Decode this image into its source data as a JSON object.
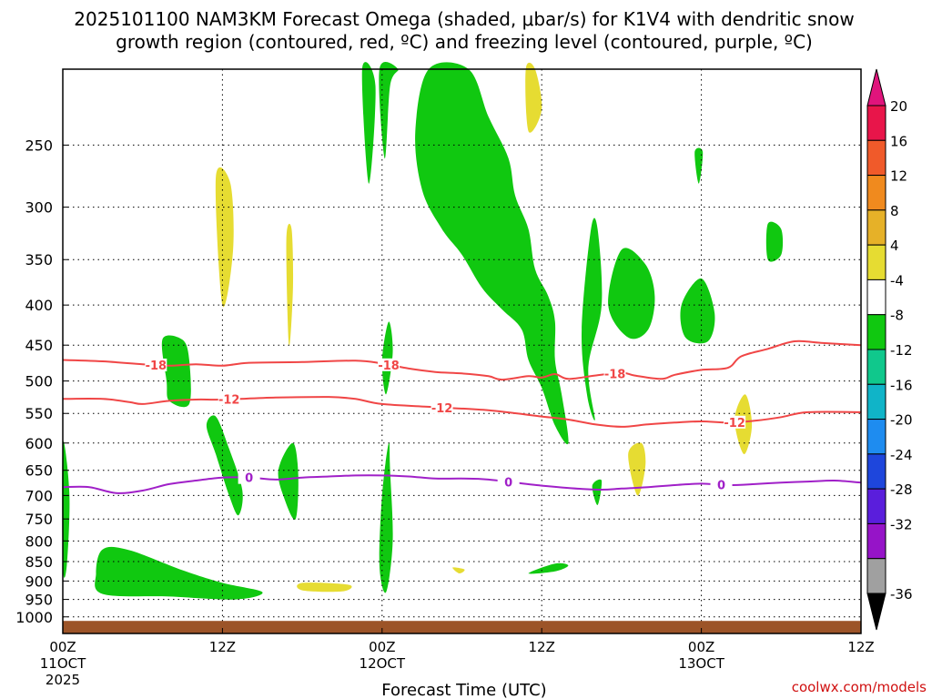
{
  "chart_data": {
    "type": "contour",
    "title_line1": "2025101100 NAM3KM Forecast Omega (shaded, μbar/s) for K1V4 with dendritic snow",
    "title_line2": "growth region (contoured, red, ºC) and freezing level (contoured, purple, ºC)",
    "xlabel": "Forecast Time (UTC)",
    "credit": "coolwx.com/models",
    "x_range_hours": [
      0,
      60
    ],
    "x_ticks": [
      {
        "h": 0,
        "label": "00Z",
        "sub": "11OCT",
        "sub2": "2025"
      },
      {
        "h": 12,
        "label": "12Z",
        "sub": "",
        "sub2": ""
      },
      {
        "h": 24,
        "label": "00Z",
        "sub": "12OCT",
        "sub2": ""
      },
      {
        "h": 36,
        "label": "12Z",
        "sub": "",
        "sub2": ""
      },
      {
        "h": 48,
        "label": "00Z",
        "sub": "13OCT",
        "sub2": ""
      },
      {
        "h": 60,
        "label": "12Z",
        "sub": "",
        "sub2": ""
      }
    ],
    "y_axis": {
      "scale": "log-pressure",
      "top_hpa": 200,
      "bottom_hpa": 1050,
      "inverted": true
    },
    "y_ticks": [
      "250",
      "300",
      "350",
      "400",
      "450",
      "500",
      "550",
      "600",
      "650",
      "700",
      "750",
      "800",
      "850",
      "900",
      "950",
      "1000"
    ],
    "y_tick_values": [
      250,
      300,
      350,
      400,
      450,
      500,
      550,
      600,
      650,
      700,
      750,
      800,
      850,
      900,
      950,
      1000
    ],
    "colorbar": {
      "labels": [
        "20",
        "16",
        "12",
        "8",
        "4",
        "-4",
        "-8",
        "-12",
        "-16",
        "-20",
        "-24",
        "-28",
        "-32",
        "-36"
      ],
      "colors": [
        "#e8154a",
        "#f05a2a",
        "#f08a1e",
        "#e6b128",
        "#e6dc32",
        "#ffffff",
        "#10c810",
        "#10c88c",
        "#10b4c8",
        "#1e8cf0",
        "#1e46dc",
        "#5a1edc",
        "#9614c8",
        "#a0a0a0"
      ],
      "over_color": "#e0147c",
      "under_color": "#000000"
    },
    "ground_color": "#9c5428",
    "contours": [
      {
        "name": "-18",
        "color": "#f04646",
        "points": [
          [
            0,
            470
          ],
          [
            3,
            472
          ],
          [
            6,
            476
          ],
          [
            8,
            478
          ],
          [
            10,
            476
          ],
          [
            12,
            478
          ],
          [
            14,
            474
          ],
          [
            18,
            473
          ],
          [
            22,
            471
          ],
          [
            24,
            475
          ],
          [
            26,
            482
          ],
          [
            28,
            487
          ],
          [
            30,
            489
          ],
          [
            32,
            493
          ],
          [
            33,
            498
          ],
          [
            35,
            493
          ],
          [
            36,
            495
          ],
          [
            37,
            490
          ],
          [
            38,
            497
          ],
          [
            40,
            492
          ],
          [
            42,
            488
          ],
          [
            43,
            492
          ],
          [
            45,
            497
          ],
          [
            46,
            491
          ],
          [
            48,
            484
          ],
          [
            50,
            481
          ],
          [
            51,
            465
          ],
          [
            53,
            455
          ],
          [
            55,
            445
          ],
          [
            57,
            447
          ],
          [
            60,
            450
          ]
        ],
        "label_at": [
          7,
          24.5,
          41.5
        ]
      },
      {
        "name": "-12",
        "color": "#f04646",
        "points": [
          [
            0,
            527
          ],
          [
            3,
            527
          ],
          [
            5,
            532
          ],
          [
            6,
            535
          ],
          [
            8,
            530
          ],
          [
            10,
            528
          ],
          [
            12,
            528
          ],
          [
            16,
            525
          ],
          [
            20,
            524
          ],
          [
            22,
            527
          ],
          [
            24,
            535
          ],
          [
            28,
            540
          ],
          [
            32,
            545
          ],
          [
            36,
            555
          ],
          [
            38,
            560
          ],
          [
            40,
            568
          ],
          [
            42,
            572
          ],
          [
            44,
            568
          ],
          [
            46,
            565
          ],
          [
            48,
            563
          ],
          [
            50,
            565
          ],
          [
            52,
            562
          ],
          [
            54,
            556
          ],
          [
            56,
            548
          ],
          [
            60,
            548
          ]
        ],
        "label_at": [
          12.5,
          28.5,
          50.5
        ]
      },
      {
        "name": "0",
        "color": "#a020c8",
        "points": [
          [
            0,
            683
          ],
          [
            2,
            683
          ],
          [
            4,
            695
          ],
          [
            6,
            690
          ],
          [
            8,
            677
          ],
          [
            10,
            670
          ],
          [
            12,
            664
          ],
          [
            14,
            664
          ],
          [
            16,
            668
          ],
          [
            18,
            664
          ],
          [
            20,
            662
          ],
          [
            22,
            660
          ],
          [
            24,
            660
          ],
          [
            26,
            662
          ],
          [
            28,
            666
          ],
          [
            30,
            666
          ],
          [
            32,
            668
          ],
          [
            36,
            680
          ],
          [
            40,
            688
          ],
          [
            42,
            686
          ],
          [
            44,
            683
          ],
          [
            46,
            679
          ],
          [
            48,
            676
          ],
          [
            50,
            679
          ],
          [
            52,
            677
          ],
          [
            54,
            674
          ],
          [
            56,
            672
          ],
          [
            58,
            670
          ],
          [
            60,
            674
          ]
        ],
        "label_at": [
          14,
          33.5,
          49.5
        ]
      }
    ],
    "shaded_regions": [
      {
        "value_range": [
          -8,
          -4
        ],
        "color": "#10c810",
        "points": [
          [
            23.8,
            200
          ],
          [
            24.2,
            260
          ],
          [
            24.6,
            210
          ],
          [
            25.2,
            200
          ]
        ]
      },
      {
        "value_range": [
          -8,
          -4
        ],
        "color": "#10c810",
        "points": [
          [
            27.5,
            200
          ],
          [
            26.5,
            240
          ],
          [
            27,
            285
          ],
          [
            28.5,
            320
          ],
          [
            30,
            345
          ],
          [
            31.5,
            380
          ],
          [
            33,
            405
          ],
          [
            34.5,
            430
          ],
          [
            35,
            470
          ],
          [
            36,
            510
          ],
          [
            37,
            570
          ],
          [
            38,
            600
          ],
          [
            37.5,
            520
          ],
          [
            37,
            470
          ],
          [
            37,
            420
          ],
          [
            36.5,
            390
          ],
          [
            35.5,
            360
          ],
          [
            35,
            320
          ],
          [
            34,
            290
          ],
          [
            33.5,
            260
          ],
          [
            32,
            230
          ],
          [
            30.5,
            200
          ]
        ]
      },
      {
        "value_range": [
          -8,
          -4
        ],
        "color": "#10c810",
        "points": [
          [
            22.5,
            200
          ],
          [
            23,
            280
          ],
          [
            23.5,
            210
          ]
        ]
      },
      {
        "value_range": [
          -8,
          -4
        ],
        "color": "#10c810",
        "points": [
          [
            24.5,
            420
          ],
          [
            24,
            470
          ],
          [
            24.3,
            520
          ],
          [
            24.8,
            460
          ]
        ]
      },
      {
        "value_range": [
          -8,
          -4
        ],
        "color": "#10c810",
        "points": [
          [
            24.5,
            600
          ],
          [
            24,
            700
          ],
          [
            23.8,
            860
          ],
          [
            24.3,
            930
          ],
          [
            24.8,
            800
          ],
          [
            24.6,
            650
          ]
        ]
      },
      {
        "value_range": [
          -8,
          -4
        ],
        "color": "#10c810",
        "points": [
          [
            0,
            600
          ],
          [
            0.5,
            700
          ],
          [
            0.3,
            860
          ],
          [
            0,
            860
          ]
        ]
      },
      {
        "value_range": [
          -8,
          -4
        ],
        "color": "#10c810",
        "points": [
          [
            3,
            820
          ],
          [
            2.5,
            880
          ],
          [
            3,
            935
          ],
          [
            8,
            942
          ],
          [
            13,
            950
          ],
          [
            15,
            930
          ],
          [
            12,
            905
          ],
          [
            9,
            872
          ],
          [
            5,
            822
          ]
        ]
      },
      {
        "value_range": [
          -8,
          -4
        ],
        "color": "#10c810",
        "points": [
          [
            7.5,
            442
          ],
          [
            7.8,
            500
          ],
          [
            8,
            530
          ],
          [
            9.5,
            535
          ],
          [
            9.5,
            470
          ],
          [
            9,
            443
          ]
        ]
      },
      {
        "value_range": [
          -8,
          -4
        ],
        "color": "#10c810",
        "points": [
          [
            10.8,
            570
          ],
          [
            11.5,
            620
          ],
          [
            12.5,
            700
          ],
          [
            13.2,
            742
          ],
          [
            13.5,
            690
          ],
          [
            12.5,
            610
          ],
          [
            11.5,
            555
          ]
        ]
      },
      {
        "value_range": [
          -8,
          -4
        ],
        "color": "#10c810",
        "points": [
          [
            16.2,
            650
          ],
          [
            16.7,
            710
          ],
          [
            17.5,
            750
          ],
          [
            17.7,
            660
          ],
          [
            17.3,
            600
          ]
        ]
      },
      {
        "value_range": [
          -8,
          -4
        ],
        "color": "#10c810",
        "points": [
          [
            39,
            430
          ],
          [
            39.4,
            520
          ],
          [
            40,
            560
          ],
          [
            39.5,
            480
          ],
          [
            40.5,
            400
          ],
          [
            40.2,
            320
          ],
          [
            39.7,
            320
          ]
        ]
      },
      {
        "value_range": [
          -8,
          -4
        ],
        "color": "#10c810",
        "points": [
          [
            42,
            340
          ],
          [
            41,
            400
          ],
          [
            42.5,
            440
          ],
          [
            44,
            430
          ],
          [
            44.5,
            390
          ],
          [
            43.8,
            355
          ]
        ]
      },
      {
        "value_range": [
          -8,
          -4
        ],
        "color": "#10c810",
        "points": [
          [
            46.5,
            400
          ],
          [
            46.8,
            440
          ],
          [
            48.5,
            445
          ],
          [
            49,
            410
          ],
          [
            48,
            370
          ]
        ]
      },
      {
        "value_range": [
          -8,
          -4
        ],
        "color": "#10c810",
        "points": [
          [
            47.5,
            255
          ],
          [
            47.8,
            280
          ],
          [
            48.1,
            255
          ]
        ]
      },
      {
        "value_range": [
          -8,
          -4
        ],
        "color": "#10c810",
        "points": [
          [
            53,
            315
          ],
          [
            53,
            350
          ],
          [
            54,
            345
          ],
          [
            54,
            320
          ]
        ]
      },
      {
        "value_range": [
          -8,
          -4
        ],
        "color": "#10c810",
        "points": [
          [
            39.8,
            680
          ],
          [
            40.2,
            720
          ],
          [
            40.5,
            670
          ]
        ]
      },
      {
        "value_range": [
          -8,
          -4
        ],
        "color": "#10c810",
        "points": [
          [
            35,
            880
          ],
          [
            37,
            875
          ],
          [
            38,
            860
          ],
          [
            37,
            855
          ]
        ]
      },
      {
        "value_range": [
          4,
          8
        ],
        "color": "#e6dc32",
        "points": [
          [
            11.5,
            275
          ],
          [
            12,
            400
          ],
          [
            12.8,
            340
          ],
          [
            12.6,
            280
          ]
        ]
      },
      {
        "value_range": [
          4,
          8
        ],
        "color": "#e6dc32",
        "points": [
          [
            16.8,
            330
          ],
          [
            17,
            450
          ],
          [
            17.3,
            380
          ],
          [
            17.2,
            320
          ]
        ]
      },
      {
        "value_range": [
          4,
          8
        ],
        "color": "#e6dc32",
        "points": [
          [
            34.8,
            200
          ],
          [
            35,
            240
          ],
          [
            36,
            225
          ],
          [
            35.5,
            200
          ]
        ]
      },
      {
        "value_range": [
          4,
          8
        ],
        "color": "#e6dc32",
        "points": [
          [
            18,
            905
          ],
          [
            18,
            925
          ],
          [
            21,
            928
          ],
          [
            21.5,
            910
          ]
        ]
      },
      {
        "value_range": [
          4,
          8
        ],
        "color": "#e6dc32",
        "points": [
          [
            42.5,
            620
          ],
          [
            43.2,
            700
          ],
          [
            43.8,
            640
          ],
          [
            43.5,
            600
          ]
        ]
      },
      {
        "value_range": [
          4,
          8
        ],
        "color": "#e6dc32",
        "points": [
          [
            50.5,
            560
          ],
          [
            51.2,
            620
          ],
          [
            51.8,
            570
          ],
          [
            51.3,
            520
          ]
        ]
      },
      {
        "value_range": [
          4,
          8
        ],
        "color": "#e6dc32",
        "points": [
          [
            29.3,
            865
          ],
          [
            29.8,
            880
          ],
          [
            30.2,
            870
          ]
        ]
      }
    ]
  }
}
